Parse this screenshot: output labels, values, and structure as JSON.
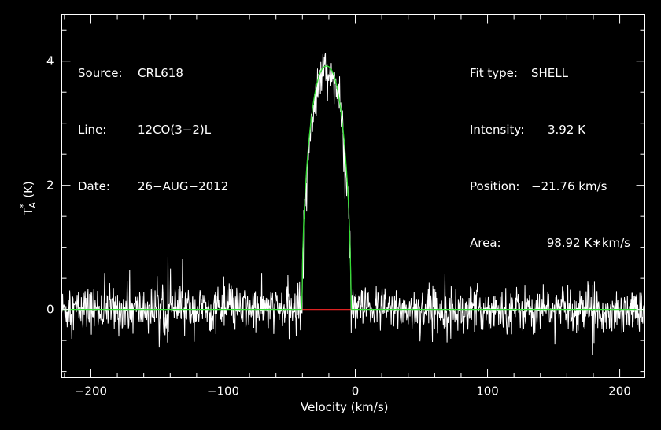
{
  "info_left": {
    "source_label": "Source:",
    "source_value": "CRL618",
    "line_label": "Line:",
    "line_value": "12CO(3−2)L",
    "date_label": "Date:",
    "date_value": "26−AUG−2012"
  },
  "info_right": {
    "fit_type_label": "Fit type:",
    "fit_type_value": "SHELL",
    "intensity_label": "Intensity:",
    "intensity_value": "3.92 K",
    "position_label": "Position:",
    "position_value": "−21.76 km/s",
    "area_label": "Area:",
    "area_value": "98.92 K∗km/s"
  },
  "chart_data": {
    "type": "line",
    "xlabel": "Velocity (km/s)",
    "ylabel_main": "T",
    "ylabel_sup": "*",
    "ylabel_sub": "A",
    "ylabel_unit": " (K)",
    "xlim": [
      -222,
      219
    ],
    "ylim": [
      -1.1,
      4.75
    ],
    "xticks": [
      -200,
      -100,
      0,
      100,
      200
    ],
    "xtick_labels": [
      "−200",
      "−100",
      "0",
      "100",
      "200"
    ],
    "yticks": [
      0,
      2,
      4
    ],
    "ytick_labels": [
      "0",
      "2",
      "4"
    ],
    "grid": false,
    "colors": {
      "spectrum": "#ffffff",
      "fit": "#33dd33",
      "baseline_window": "#dd2222",
      "axes": "#ffffff"
    },
    "series": [
      {
        "kind": "spectrum",
        "description_points_generated": true,
        "noise_rms": 0.18,
        "line_center": -21.76,
        "line_peak": 3.92,
        "line_halfwidth": 18.5
      },
      {
        "kind": "fit",
        "fit_type": "SHELL",
        "intensity": 3.92,
        "position": -21.76,
        "area": 98.92
      }
    ],
    "baseline_window": [
      -40,
      -3.5
    ]
  }
}
